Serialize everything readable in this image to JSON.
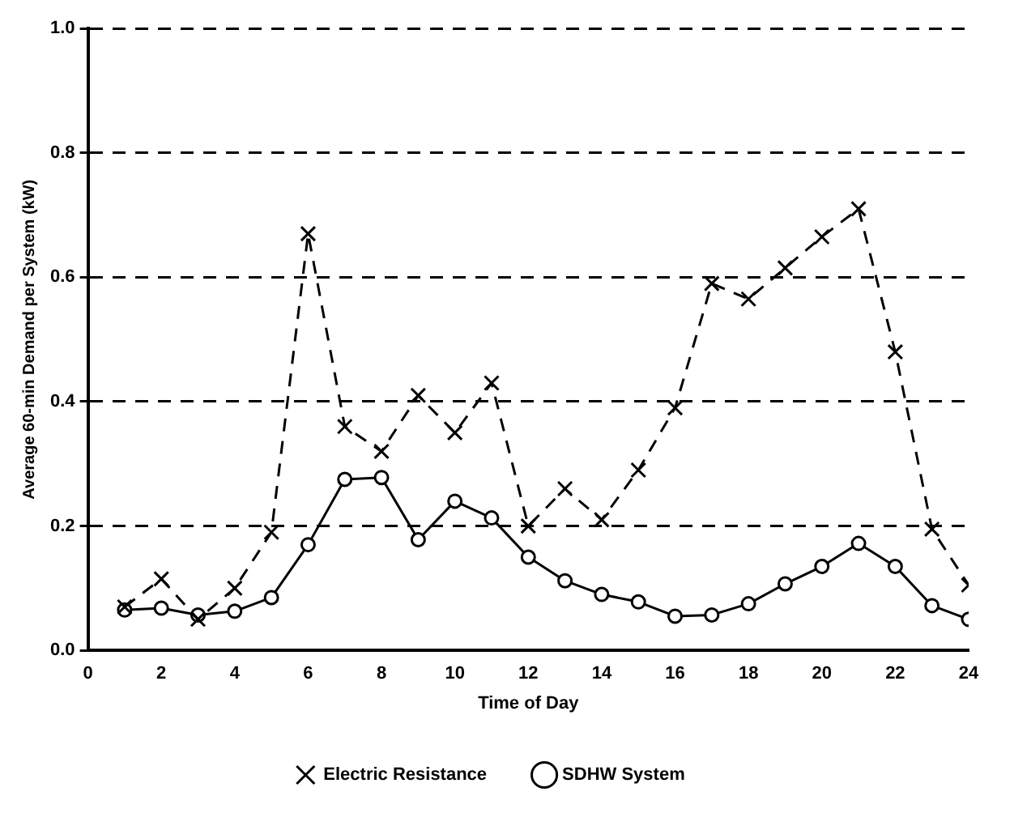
{
  "chart_data": {
    "type": "line",
    "xlabel": "Time of Day",
    "ylabel": "Average 60-min Demand per System (kW)",
    "x": [
      1,
      2,
      3,
      4,
      5,
      6,
      7,
      8,
      9,
      10,
      11,
      12,
      13,
      14,
      15,
      16,
      17,
      18,
      19,
      20,
      21,
      22,
      23,
      24
    ],
    "series": [
      {
        "name": "SDHW System",
        "color": "#000000",
        "marker": "circle",
        "line_style": "solid",
        "values": [
          0.065,
          0.068,
          0.057,
          0.063,
          0.085,
          0.17,
          0.275,
          0.278,
          0.178,
          0.24,
          0.213,
          0.15,
          0.112,
          0.09,
          0.078,
          0.055,
          0.057,
          0.075,
          0.107,
          0.135,
          0.172,
          0.135,
          0.072,
          0.05
        ]
      },
      {
        "name": "Electric Resistance",
        "color": "#000000",
        "marker": "cross",
        "line_style": "dashed",
        "values": [
          0.07,
          0.115,
          0.05,
          0.1,
          0.19,
          0.67,
          0.36,
          0.32,
          0.41,
          0.35,
          0.43,
          0.2,
          0.26,
          0.21,
          0.29,
          0.39,
          0.59,
          0.565,
          0.615,
          0.665,
          0.71,
          0.48,
          0.195,
          0.105
        ]
      }
    ],
    "xlim": [
      0,
      24
    ],
    "xticks": [
      0,
      2,
      4,
      6,
      8,
      10,
      12,
      14,
      16,
      18,
      20,
      22,
      24
    ],
    "ylim": [
      0,
      1
    ],
    "yticks": [
      {
        "value": 0,
        "label": "0.0"
      },
      {
        "value": 0.2,
        "label": "0.2"
      },
      {
        "value": 0.4,
        "label": "0.4"
      },
      {
        "value": 0.6,
        "label": "0.6"
      },
      {
        "value": 0.8,
        "label": "0.8"
      },
      {
        "value": 1,
        "label": "1.0"
      }
    ],
    "grid": "y",
    "legend": "bottom"
  }
}
